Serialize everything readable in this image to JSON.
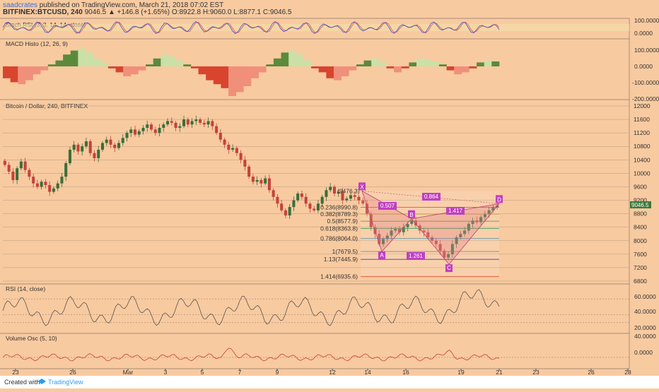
{
  "header": {
    "line1_user": "saadcrates",
    "line1_rest": "published on TradingView.com, March 21, 2018 07:02 EST",
    "symbol": "BITFINEX:BTCUSD, 240",
    "quote": "9046.5 ▲ +146.8 (+1.65%) O:8922.8 H:9060.0 L:8877.1 C:9046.5"
  },
  "panes": {
    "stoch": {
      "label": "Stoch RSI (3, 3, 14, 14, close)",
      "ticks": [
        "100.0000",
        "0.0000"
      ]
    },
    "macd": {
      "label": "MACD Histo (12, 26, 9)",
      "ticks": [
        "100.0000",
        "0.0000",
        "-100.0000",
        "-200.0000"
      ]
    },
    "price": {
      "label": "Bitcoin / Dollar, 240, BITFINEX",
      "last_price": "9046.5"
    },
    "rsi": {
      "label": "RSI (14, close)",
      "ticks": [
        "60.0000",
        "40.0000",
        "20.0000"
      ]
    },
    "vol": {
      "label": "Volume Osc (5, 10)",
      "ticks": [
        "40.0000",
        "0.0000"
      ]
    }
  },
  "footer": {
    "created_with": "Created with",
    "brand": "TradingView"
  },
  "colors": {
    "background": "#f8caa0",
    "up": "#3a6e3a",
    "down": "#c4423a",
    "macd_pos_dark": "#5b8a3c",
    "macd_pos_light": "#cbe0a8",
    "macd_neg_dark": "#d9442f",
    "macd_neg_light": "#f0907a",
    "stoch_k": "#3b4fd0",
    "stoch_d": "#d9534f"
  },
  "chart_data": [
    {
      "type": "candlestick",
      "title": "Bitcoin / Dollar, 240, BITFINEX",
      "ylim": [
        6800,
        12000
      ],
      "y_ticks": [
        12000,
        11600,
        11200,
        10800,
        10400,
        10000,
        9600,
        9200,
        8800,
        8400,
        8000,
        7600,
        7200,
        6800
      ],
      "x_ticks": [
        "23",
        "26",
        "Mar",
        "3",
        "5",
        "7",
        "9",
        "12",
        "14",
        "16",
        "19",
        "21",
        "23",
        "26",
        "28"
      ],
      "closes": [
        10250,
        10050,
        9800,
        10150,
        10350,
        10100,
        9900,
        9700,
        9600,
        9750,
        9650,
        9450,
        9550,
        9700,
        9900,
        10300,
        10700,
        10850,
        10650,
        10800,
        10950,
        10600,
        10450,
        10700,
        10900,
        11000,
        10850,
        10750,
        10900,
        11050,
        11200,
        11300,
        11150,
        11250,
        11350,
        11450,
        11300,
        11200,
        11350,
        11450,
        11550,
        11500,
        11350,
        11400,
        11600,
        11450,
        11550,
        11600,
        11500,
        11450,
        11550,
        11400,
        11200,
        11000,
        10850,
        10700,
        10750,
        10600,
        10400,
        10200,
        9900,
        9750,
        9800,
        9700,
        9850,
        9500,
        9300,
        9100,
        8900,
        8750,
        9000,
        9200,
        9400,
        9300,
        9100,
        8950,
        8900,
        9100,
        9300,
        9500,
        9600,
        9400,
        9450,
        9200,
        9250,
        9350,
        9300,
        9200,
        9100,
        8800,
        8400,
        8200,
        7900,
        8050,
        8150,
        8300,
        8350,
        8250,
        8400,
        8500,
        8600,
        8450,
        8300,
        8250,
        8100,
        8000,
        7900,
        7700,
        7500,
        7600,
        7900,
        8100,
        8200,
        8300,
        8500,
        8600,
        8550,
        8700,
        8800,
        8900,
        9000,
        9046.5
      ],
      "fib_levels": [
        {
          "label": "0.236(8990.8)",
          "value": 8990.8,
          "color": "#d9442f"
        },
        {
          "label": "0.382(8789.3)",
          "value": 8789.3,
          "color": "#b8a030"
        },
        {
          "label": "0.5(8577.9)",
          "value": 8577.9,
          "color": "#6a9a3a"
        },
        {
          "label": "0.618(8363.8)",
          "value": 8363.8,
          "color": "#3aa05a"
        },
        {
          "label": "0.786(8064.0)",
          "value": 8064.0,
          "color": "#3a8ab0"
        },
        {
          "label": "1(7679.5)",
          "value": 7679.5,
          "color": "#888888"
        },
        {
          "label": "1.13(7445.9)",
          "value": 7445.9,
          "color": "#3a3ad0"
        },
        {
          "label": "1.414(6935.6)",
          "value": 6935.6,
          "color": "#d9442f"
        }
      ],
      "fib_top_label": "(9476.3)",
      "pattern": {
        "points": [
          {
            "name": "X",
            "value": 9476.3
          },
          {
            "name": "A",
            "value": 7679.5
          },
          {
            "name": "B",
            "value": 8650
          },
          {
            "name": "C",
            "value": 7300
          },
          {
            "name": "D",
            "value": 9100
          }
        ],
        "ratios": [
          "0.507",
          "0.864",
          "1.261",
          "1.417"
        ]
      }
    },
    {
      "type": "line",
      "title": "Stoch RSI (3, 3, 14, 14, close)",
      "ylim": [
        0,
        100
      ]
    },
    {
      "type": "bar",
      "title": "MACD Histo (12, 26, 9)",
      "ylim": [
        -200,
        100
      ]
    },
    {
      "type": "line",
      "title": "RSI (14, close)",
      "ylim": [
        20,
        70
      ]
    },
    {
      "type": "line",
      "title": "Volume Osc (5, 10)",
      "ylim": [
        -20,
        50
      ]
    }
  ]
}
